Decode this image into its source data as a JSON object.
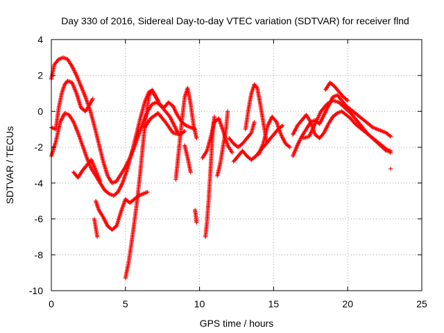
{
  "chart_data": {
    "type": "scatter",
    "title": "Day 330 of 2016, Sidereal Day-to-day VTEC variation (SDTVAR) for receiver flnd",
    "xlabel": "GPS time / hours",
    "ylabel": "SDTVAR / TECUs",
    "xlim": [
      0,
      25
    ],
    "ylim": [
      -10,
      4
    ],
    "x_ticks": [
      0,
      5,
      10,
      15,
      20,
      25
    ],
    "y_ticks": [
      -10,
      -8,
      -6,
      -4,
      -2,
      0,
      2,
      4
    ],
    "x_tick_labels": [
      "0",
      "5",
      "10",
      "15",
      "20",
      "25"
    ],
    "y_tick_labels": [
      "-10",
      "-8",
      "-6",
      "-4",
      "-2",
      "0",
      "2",
      "4"
    ],
    "grid": true,
    "marker": "+",
    "color": "#ff0000",
    "tracks": [
      [
        [
          0,
          1.8
        ],
        [
          0.2,
          2.6
        ],
        [
          0.5,
          2.9
        ],
        [
          0.8,
          3.0
        ],
        [
          1.1,
          2.9
        ],
        [
          1.4,
          2.5
        ],
        [
          1.7,
          2.0
        ],
        [
          2.0,
          1.4
        ],
        [
          2.3,
          0.8
        ],
        [
          2.6,
          0.1
        ],
        [
          2.9,
          -0.8
        ],
        [
          3.2,
          -1.8
        ],
        [
          3.5,
          -2.8
        ],
        [
          3.8,
          -3.6
        ],
        [
          4.1,
          -4.0
        ],
        [
          4.4,
          -3.9
        ],
        [
          4.7,
          -3.5
        ],
        [
          5.0,
          -3.1
        ],
        [
          5.3,
          -2.6
        ],
        [
          5.6,
          -2.0
        ],
        [
          5.9,
          -1.3
        ],
        [
          6.2,
          -0.6
        ],
        [
          6.5,
          0.0
        ],
        [
          6.8,
          0.4
        ],
        [
          7.1,
          0.5
        ],
        [
          7.4,
          0.3
        ],
        [
          7.7,
          0.0
        ],
        [
          8.0,
          -0.3
        ],
        [
          8.3,
          -0.8
        ],
        [
          8.6,
          -1.3
        ]
      ],
      [
        [
          0,
          -0.9
        ],
        [
          0.3,
          -1.0
        ],
        [
          0.5,
          0.2
        ],
        [
          0.7,
          1.0
        ],
        [
          0.9,
          1.5
        ],
        [
          1.1,
          1.7
        ],
        [
          1.4,
          1.6
        ],
        [
          1.7,
          1.0
        ],
        [
          2.0,
          0.2
        ],
        [
          2.3,
          0.0
        ],
        [
          2.6,
          0.4
        ],
        [
          2.8,
          0.7
        ]
      ],
      [
        [
          0,
          -2.5
        ],
        [
          0.3,
          -1.7
        ],
        [
          0.6,
          -0.6
        ],
        [
          0.9,
          -0.1
        ],
        [
          1.2,
          -0.2
        ],
        [
          1.5,
          -0.6
        ],
        [
          1.8,
          -1.2
        ],
        [
          2.1,
          -1.9
        ],
        [
          2.4,
          -2.6
        ],
        [
          2.7,
          -3.2
        ],
        [
          3.0,
          -3.6
        ],
        [
          3.3,
          -4.0
        ],
        [
          3.6,
          -4.4
        ],
        [
          3.9,
          -4.6
        ],
        [
          4.2,
          -4.7
        ],
        [
          4.5,
          -4.5
        ],
        [
          4.8,
          -4.0
        ],
        [
          5.1,
          -3.3
        ],
        [
          5.4,
          -2.4
        ],
        [
          5.7,
          -1.4
        ],
        [
          6.0,
          -0.4
        ],
        [
          6.3,
          0.5
        ],
        [
          6.6,
          1.1
        ],
        [
          6.9,
          1.0
        ],
        [
          7.2,
          0.6
        ]
      ],
      [
        [
          1.5,
          -3.4
        ],
        [
          1.8,
          -3.7
        ],
        [
          2.1,
          -3.3
        ],
        [
          2.4,
          -3.0
        ],
        [
          2.7,
          -2.7
        ],
        [
          3.0,
          -3.3
        ],
        [
          3.3,
          -3.9
        ]
      ],
      [
        [
          2.9,
          -6.0
        ],
        [
          3.1,
          -7.0
        ]
      ],
      [
        [
          3.0,
          -5.0
        ],
        [
          3.2,
          -5.5
        ],
        [
          3.5,
          -5.9
        ],
        [
          3.8,
          -6.4
        ],
        [
          4.1,
          -6.6
        ],
        [
          4.4,
          -6.4
        ],
        [
          4.7,
          -5.6
        ],
        [
          5.0,
          -4.9
        ],
        [
          5.3,
          -5.1
        ],
        [
          5.6,
          -4.9
        ],
        [
          5.9,
          -4.7
        ],
        [
          6.2,
          -4.6
        ],
        [
          6.5,
          -4.5
        ]
      ],
      [
        [
          5.0,
          -9.3
        ],
        [
          5.2,
          -8.5
        ],
        [
          5.4,
          -7.4
        ],
        [
          5.6,
          -6.2
        ],
        [
          5.8,
          -4.9
        ],
        [
          6.0,
          -3.4
        ],
        [
          6.2,
          -1.7
        ],
        [
          6.4,
          -0.2
        ],
        [
          6.6,
          0.9
        ],
        [
          6.8,
          1.2
        ],
        [
          7.0,
          0.9
        ],
        [
          7.3,
          0.4
        ],
        [
          7.6,
          0.2
        ],
        [
          7.9,
          0.5
        ],
        [
          8.2,
          0.3
        ],
        [
          8.5,
          -0.2
        ],
        [
          8.8,
          -0.6
        ],
        [
          9.1,
          -0.8
        ],
        [
          9.4,
          -0.9
        ],
        [
          9.7,
          -1.0
        ]
      ],
      [
        [
          6.3,
          -0.9
        ],
        [
          6.7,
          -0.4
        ],
        [
          7.2,
          -0.1
        ],
        [
          7.7,
          -0.6
        ],
        [
          8.2,
          -1.2
        ],
        [
          8.7,
          -1.3
        ],
        [
          9.0,
          -1.1
        ]
      ],
      [
        [
          8.4,
          -3.8
        ],
        [
          8.6,
          -2.2
        ],
        [
          8.8,
          -0.6
        ],
        [
          9.0,
          0.8
        ],
        [
          9.2,
          1.3
        ],
        [
          9.4,
          0.4
        ],
        [
          9.6,
          -0.8
        ],
        [
          9.8,
          -1.5
        ]
      ],
      [
        [
          9.7,
          -5.5
        ],
        [
          9.8,
          -6.2
        ]
      ],
      [
        [
          9.0,
          -1.9
        ],
        [
          9.2,
          -2.6
        ],
        [
          9.4,
          -3.4
        ]
      ],
      [
        [
          10.4,
          -7.0
        ],
        [
          10.5,
          -6.2
        ],
        [
          10.6,
          -5.1
        ],
        [
          10.7,
          -3.8
        ],
        [
          10.8,
          -2.4
        ],
        [
          10.9,
          -1.0
        ],
        [
          11.0,
          -0.3
        ]
      ],
      [
        [
          10.2,
          -2.6
        ],
        [
          10.5,
          -2.2
        ],
        [
          10.8,
          -1.3
        ],
        [
          11.0,
          -0.6
        ],
        [
          11.3,
          -0.4
        ],
        [
          11.6,
          -1.1
        ],
        [
          11.9,
          -1.9
        ],
        [
          12.2,
          -2.3
        ]
      ],
      [
        [
          11.2,
          -3.6
        ],
        [
          11.4,
          -2.9
        ],
        [
          11.6,
          -1.9
        ],
        [
          11.8,
          -0.9
        ],
        [
          11.9,
          0.0
        ]
      ],
      [
        [
          12.0,
          -1.5
        ],
        [
          12.3,
          -1.8
        ],
        [
          12.6,
          -2.0
        ],
        [
          12.9,
          -1.8
        ],
        [
          13.2,
          -1.5
        ],
        [
          13.5,
          -1.2
        ],
        [
          13.7,
          -0.6
        ]
      ],
      [
        [
          12.3,
          -2.8
        ],
        [
          12.6,
          -2.5
        ],
        [
          12.9,
          -2.2
        ],
        [
          13.2,
          -2.5
        ],
        [
          13.5,
          -2.7
        ],
        [
          13.8,
          -2.5
        ],
        [
          14.1,
          -2.2
        ],
        [
          14.4,
          -1.9
        ],
        [
          14.7,
          -1.6
        ],
        [
          15.0,
          -1.3
        ],
        [
          15.3,
          -1.0
        ],
        [
          15.6,
          -0.8
        ]
      ],
      [
        [
          13.1,
          -1.0
        ],
        [
          13.3,
          0.1
        ],
        [
          13.5,
          1.0
        ],
        [
          13.7,
          1.5
        ],
        [
          13.9,
          1.3
        ],
        [
          14.1,
          0.4
        ],
        [
          14.3,
          -0.6
        ],
        [
          14.5,
          -1.6
        ]
      ],
      [
        [
          14.0,
          -2.4
        ],
        [
          14.3,
          -1.8
        ],
        [
          14.6,
          -0.8
        ],
        [
          14.9,
          -0.3
        ],
        [
          15.2,
          -0.6
        ],
        [
          15.5,
          -1.3
        ],
        [
          15.8,
          -1.8
        ],
        [
          16.1,
          -2.0
        ]
      ],
      [
        [
          16.3,
          -2.5
        ],
        [
          16.6,
          -1.9
        ],
        [
          16.9,
          -1.4
        ],
        [
          17.2,
          -1.0
        ],
        [
          17.5,
          -0.6
        ],
        [
          17.8,
          -0.5
        ],
        [
          18.1,
          -0.7
        ],
        [
          18.4,
          -0.2
        ],
        [
          18.7,
          0.3
        ],
        [
          19.0,
          0.8
        ],
        [
          19.3,
          0.9
        ],
        [
          19.6,
          0.6
        ],
        [
          19.9,
          0.3
        ],
        [
          20.2,
          0.1
        ],
        [
          20.5,
          -0.1
        ],
        [
          20.8,
          -0.3
        ],
        [
          21.1,
          -0.5
        ],
        [
          21.4,
          -0.7
        ],
        [
          21.7,
          -0.9
        ],
        [
          22.0,
          -1.0
        ],
        [
          22.3,
          -1.1
        ],
        [
          22.6,
          -1.2
        ],
        [
          22.9,
          -1.4
        ]
      ],
      [
        [
          16.3,
          -1.3
        ],
        [
          16.6,
          -0.8
        ],
        [
          16.9,
          -0.5
        ],
        [
          17.2,
          -0.2
        ],
        [
          17.5,
          -0.6
        ],
        [
          17.8,
          -1.3
        ],
        [
          18.1,
          -1.5
        ],
        [
          18.4,
          -1.2
        ],
        [
          18.7,
          -0.7
        ],
        [
          19.0,
          -0.3
        ],
        [
          19.3,
          -0.1
        ],
        [
          19.6,
          0.0
        ],
        [
          19.9,
          -0.2
        ],
        [
          20.2,
          -0.4
        ],
        [
          20.5,
          -0.7
        ],
        [
          20.8,
          -0.9
        ],
        [
          21.1,
          -1.1
        ],
        [
          21.4,
          -1.3
        ],
        [
          21.7,
          -1.5
        ],
        [
          22.0,
          -1.7
        ],
        [
          22.3,
          -1.9
        ],
        [
          22.6,
          -2.1
        ],
        [
          22.9,
          -2.3
        ]
      ],
      [
        [
          17.0,
          -1.5
        ],
        [
          17.4,
          -1.4
        ],
        [
          17.8,
          -0.7
        ],
        [
          18.2,
          0.0
        ],
        [
          18.6,
          0.4
        ],
        [
          19.0,
          0.6
        ],
        [
          19.4,
          0.5
        ],
        [
          19.8,
          0.2
        ],
        [
          20.2,
          -0.1
        ],
        [
          20.6,
          -0.5
        ],
        [
          21.0,
          -0.9
        ],
        [
          21.4,
          -1.3
        ],
        [
          21.8,
          -1.6
        ],
        [
          22.2,
          -1.9
        ],
        [
          22.6,
          -2.2
        ],
        [
          22.9,
          -2.2
        ]
      ],
      [
        [
          18.5,
          1.2
        ],
        [
          18.8,
          1.6
        ],
        [
          19.1,
          1.4
        ],
        [
          19.4,
          1.1
        ],
        [
          19.7,
          0.8
        ],
        [
          20.0,
          0.6
        ]
      ],
      [
        [
          22.9,
          -3.2
        ]
      ]
    ]
  }
}
